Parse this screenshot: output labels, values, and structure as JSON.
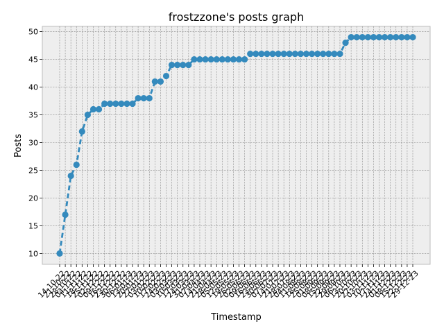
{
  "chart_data": {
    "type": "line",
    "title": "frostzzone's posts graph",
    "xlabel": "Timestamp",
    "ylabel": "Posts",
    "ylim": [
      8.05,
      50.95
    ],
    "yticks": [
      10,
      15,
      20,
      25,
      30,
      35,
      40,
      45,
      50
    ],
    "grid": true,
    "x_tick_labels": [
      "14-10-22",
      "21-10-22",
      "28-10-22",
      "04-11-22",
      "11-11-22",
      "18-11-22",
      "25-11-22",
      "02-12-22",
      "09-12-22",
      "16-12-22",
      "23-12-22",
      "30-12-22",
      "06-01-23",
      "13-01-23",
      "20-01-23",
      "27-01-23",
      "03-02-23",
      "10-02-23",
      "17-02-23",
      "24-02-23",
      "03-03-23",
      "10-03-23",
      "17-03-23",
      "24-03-23",
      "31-03-23",
      "07-04-23",
      "14-04-23",
      "21-04-23",
      "28-04-23",
      "05-05-23",
      "12-05-23",
      "19-05-23",
      "26-05-23",
      "02-06-23",
      "09-06-23",
      "16-06-23",
      "23-06-23",
      "30-06-23",
      "07-07-23",
      "14-07-23",
      "21-07-23",
      "28-07-23",
      "04-08-23",
      "11-08-23",
      "18-08-23",
      "25-08-23",
      "01-09-23",
      "08-09-23",
      "15-09-23",
      "22-09-23",
      "29-09-23",
      "06-10-23",
      "13-10-23",
      "20-10-23",
      "27-10-23",
      "03-11-23",
      "10-11-23",
      "17-11-23",
      "24-11-23",
      "01-12-23",
      "08-12-23",
      "15-12-23",
      "22-12-23",
      "29-12-23"
    ],
    "series": [
      {
        "color": "#348abd",
        "values": [
          10,
          17,
          24,
          26,
          32,
          35,
          36,
          36,
          37,
          37,
          37,
          37,
          37,
          37,
          38,
          38,
          38,
          41,
          41,
          42,
          44,
          44,
          44,
          44,
          45,
          45,
          45,
          45,
          45,
          45,
          45,
          45,
          45,
          45,
          46,
          46,
          46,
          46,
          46,
          46,
          46,
          46,
          46,
          46,
          46,
          46,
          46,
          46,
          46,
          46,
          46,
          48,
          49,
          49,
          49,
          49,
          49,
          49,
          49,
          49,
          49,
          49,
          49,
          49
        ]
      }
    ]
  }
}
